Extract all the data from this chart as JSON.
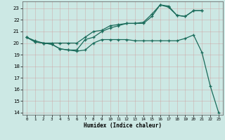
{
  "xlabel": "Humidex (Indice chaleur)",
  "bg_color": "#cce8e4",
  "line_color": "#1a6b5a",
  "xlim": [
    -0.5,
    23.5
  ],
  "ylim": [
    13.8,
    23.6
  ],
  "yticks": [
    14,
    15,
    16,
    17,
    18,
    19,
    20,
    21,
    22,
    23
  ],
  "xticks": [
    0,
    1,
    2,
    3,
    4,
    5,
    6,
    7,
    8,
    9,
    10,
    11,
    12,
    13,
    14,
    15,
    16,
    17,
    18,
    19,
    20,
    21,
    22,
    23
  ],
  "line1_x": [
    0,
    1,
    2,
    3,
    4,
    5,
    6,
    7,
    8,
    9,
    10,
    11,
    12,
    13,
    14,
    15,
    16,
    17,
    18,
    19,
    20,
    21,
    22,
    23
  ],
  "line1_y": [
    20.5,
    20.2,
    20.0,
    19.9,
    19.5,
    19.4,
    19.3,
    19.4,
    20.0,
    20.3,
    20.3,
    20.3,
    20.3,
    20.2,
    20.2,
    20.2,
    20.2,
    20.2,
    20.2,
    20.4,
    20.7,
    19.2,
    16.3,
    14.0
  ],
  "line2_x": [
    0,
    1,
    2,
    3,
    4,
    5,
    6,
    7,
    8,
    9,
    10,
    11,
    12,
    13,
    14,
    15,
    16,
    17,
    18,
    19,
    20,
    21
  ],
  "line2_y": [
    20.5,
    20.1,
    20.0,
    20.0,
    20.0,
    20.0,
    20.0,
    20.5,
    21.0,
    21.1,
    21.5,
    21.6,
    21.7,
    21.7,
    21.7,
    22.3,
    23.3,
    23.2,
    22.4,
    22.3,
    22.8,
    22.8
  ],
  "line3_x": [
    0,
    1,
    2,
    3,
    4,
    5,
    6,
    7,
    8,
    9,
    10,
    11,
    12,
    13,
    14,
    15,
    16,
    17,
    18,
    19,
    20,
    21
  ],
  "line3_y": [
    20.5,
    20.1,
    20.0,
    19.9,
    19.5,
    19.4,
    19.4,
    20.3,
    20.5,
    21.0,
    21.3,
    21.5,
    21.7,
    21.7,
    21.8,
    22.5,
    23.3,
    23.1,
    22.4,
    22.3,
    22.8,
    22.8
  ]
}
